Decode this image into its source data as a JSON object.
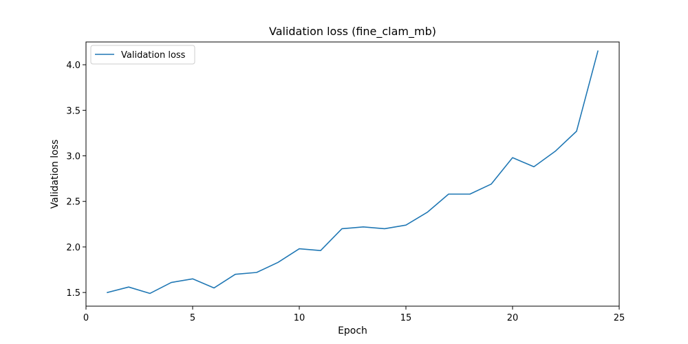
{
  "chart_data": {
    "type": "line",
    "title": "Validation loss (fine_clam_mb)",
    "xlabel": "Epoch",
    "ylabel": "Validation loss",
    "xlim": [
      0,
      25
    ],
    "ylim": [
      1.35,
      4.25
    ],
    "xticks": [
      0,
      5,
      10,
      15,
      20,
      25
    ],
    "yticks": [
      1.5,
      2.0,
      2.5,
      3.0,
      3.5,
      4.0
    ],
    "xtick_labels": [
      "0",
      "5",
      "10",
      "15",
      "20",
      "25"
    ],
    "ytick_labels": [
      "1.5",
      "2.0",
      "2.5",
      "3.0",
      "3.5",
      "4.0"
    ],
    "grid": false,
    "legend_position": "top-left",
    "series": [
      {
        "name": "Validation loss",
        "color": "#1f77b4",
        "x": [
          1,
          2,
          3,
          4,
          5,
          6,
          7,
          8,
          9,
          10,
          11,
          12,
          13,
          14,
          15,
          16,
          17,
          18,
          19,
          20,
          21,
          22,
          23,
          24
        ],
        "y": [
          1.5,
          1.56,
          1.49,
          1.61,
          1.65,
          1.55,
          1.7,
          1.72,
          1.83,
          1.98,
          1.96,
          2.2,
          2.22,
          2.2,
          2.24,
          2.38,
          2.58,
          2.58,
          2.69,
          2.98,
          2.88,
          3.05,
          3.27,
          4.15
        ]
      }
    ]
  }
}
